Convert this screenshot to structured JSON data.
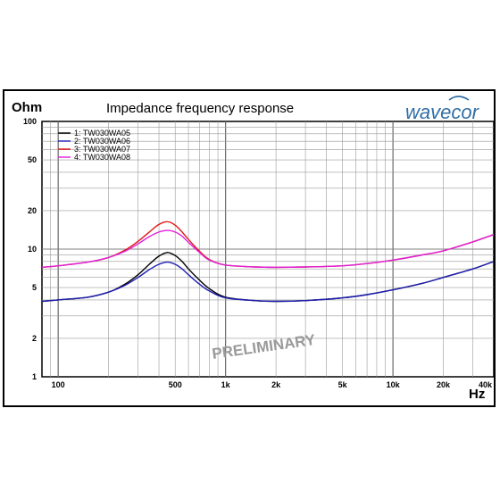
{
  "title": "Impedance frequency response",
  "logo_text": "wavecor",
  "watermark": "PRELIMINARY",
  "colors": {
    "logo": "#2f6ea8",
    "grid": "#9a9a9a",
    "watermark": "#9a9a9a"
  },
  "chart_data": {
    "type": "line",
    "title": "Impedance frequency response",
    "ylabel": "Ohm",
    "xlabel": "Hz",
    "xscale": "log",
    "yscale": "log",
    "xlim": [
      80,
      40000
    ],
    "ylim": [
      1,
      100
    ],
    "grid": true,
    "legend_position": "top-left",
    "x_ticks": [
      {
        "v": 100,
        "label": "100"
      },
      {
        "v": 500,
        "label": "500"
      },
      {
        "v": 1000,
        "label": "1k"
      },
      {
        "v": 2000,
        "label": "2k"
      },
      {
        "v": 5000,
        "label": "5k"
      },
      {
        "v": 10000,
        "label": "10k"
      },
      {
        "v": 20000,
        "label": "20k"
      },
      {
        "v": 40000,
        "label": "40k"
      }
    ],
    "y_ticks": [
      {
        "v": 1,
        "label": "1"
      },
      {
        "v": 2,
        "label": "2"
      },
      {
        "v": 5,
        "label": "5"
      },
      {
        "v": 10,
        "label": "10"
      },
      {
        "v": 20,
        "label": "20"
      },
      {
        "v": 50,
        "label": "50"
      },
      {
        "v": 100,
        "label": "100"
      }
    ],
    "x": [
      80,
      100,
      150,
      200,
      250,
      300,
      350,
      400,
      450,
      500,
      550,
      600,
      700,
      800,
      1000,
      1500,
      2000,
      3000,
      5000,
      7000,
      10000,
      15000,
      20000,
      30000,
      40000
    ],
    "series": [
      {
        "name": "1: TW030WA05",
        "color": "#000000",
        "values": [
          3.9,
          4.0,
          4.2,
          4.6,
          5.3,
          6.3,
          7.6,
          8.8,
          9.4,
          8.9,
          8.0,
          7.0,
          5.7,
          4.9,
          4.2,
          3.95,
          3.9,
          3.95,
          4.15,
          4.4,
          4.8,
          5.4,
          6.0,
          7.0,
          8.0
        ]
      },
      {
        "name": "2: TW030WA06",
        "color": "#1f1fb4",
        "values": [
          3.9,
          4.0,
          4.2,
          4.6,
          5.2,
          6.0,
          6.9,
          7.6,
          7.9,
          7.6,
          7.0,
          6.3,
          5.3,
          4.7,
          4.15,
          3.95,
          3.9,
          3.95,
          4.15,
          4.4,
          4.8,
          5.4,
          6.0,
          7.0,
          8.0
        ]
      },
      {
        "name": "3: TW030WA07",
        "color": "#e01818",
        "values": [
          7.2,
          7.4,
          7.9,
          8.6,
          9.8,
          11.5,
          13.6,
          15.6,
          16.4,
          15.4,
          13.6,
          11.9,
          9.6,
          8.3,
          7.5,
          7.25,
          7.2,
          7.25,
          7.4,
          7.7,
          8.2,
          9.0,
          9.7,
          11.4,
          13.0
        ]
      },
      {
        "name": "4: TW030WA08",
        "color": "#e020d8",
        "values": [
          7.2,
          7.4,
          7.9,
          8.6,
          9.6,
          11.0,
          12.5,
          13.6,
          14.0,
          13.6,
          12.6,
          11.3,
          9.4,
          8.2,
          7.5,
          7.25,
          7.2,
          7.25,
          7.4,
          7.7,
          8.2,
          9.0,
          9.7,
          11.4,
          13.0
        ]
      }
    ]
  }
}
